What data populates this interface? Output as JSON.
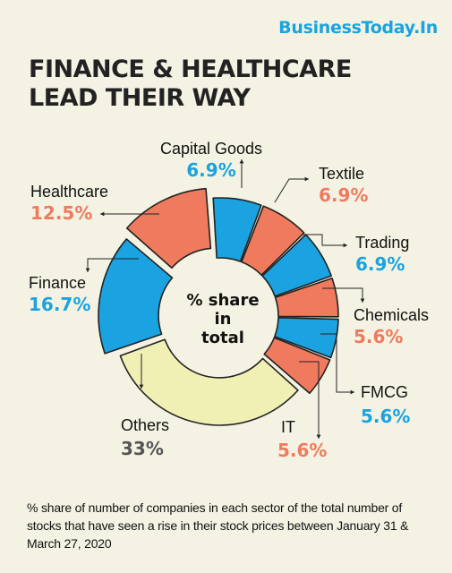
{
  "brand": "BusinessToday.In",
  "title_line1": "FINANCE & HEALTHCARE",
  "title_line2": "LEAD THEIR WAY",
  "center_label": [
    "% share",
    "in",
    "total"
  ],
  "footnote": "% share of number of companies in each sector of the total number of stocks that have seen a rise in their stock prices between January 31 & March 27, 2020",
  "colors": {
    "blue": "#1aa3e0",
    "salmon": "#ef7a5e",
    "yellow": "#f0efb4",
    "dark": "#222222",
    "gray": "#555555"
  },
  "chart_data": {
    "type": "pie",
    "variant": "donut",
    "unit": "%",
    "slices": [
      {
        "name": "Capital Goods",
        "value": 6.9,
        "label": "6.9%",
        "color": "#1aa3e0"
      },
      {
        "name": "Textile",
        "value": 6.9,
        "label": "6.9%",
        "color": "#ef7a5e"
      },
      {
        "name": "Trading",
        "value": 6.9,
        "label": "6.9%",
        "color": "#1aa3e0"
      },
      {
        "name": "Chemicals",
        "value": 5.6,
        "label": "5.6%",
        "color": "#ef7a5e"
      },
      {
        "name": "FMCG",
        "value": 5.6,
        "label": "5.6%",
        "color": "#1aa3e0"
      },
      {
        "name": "IT",
        "value": 5.6,
        "label": "5.6%",
        "color": "#ef7a5e"
      },
      {
        "name": "Others",
        "value": 33,
        "label": "33%",
        "color": "#f0efb4"
      },
      {
        "name": "Finance",
        "value": 16.7,
        "label": "16.7%",
        "color": "#1aa3e0"
      },
      {
        "name": "Healthcare",
        "value": 12.5,
        "label": "12.5%",
        "color": "#ef7a5e"
      }
    ]
  }
}
